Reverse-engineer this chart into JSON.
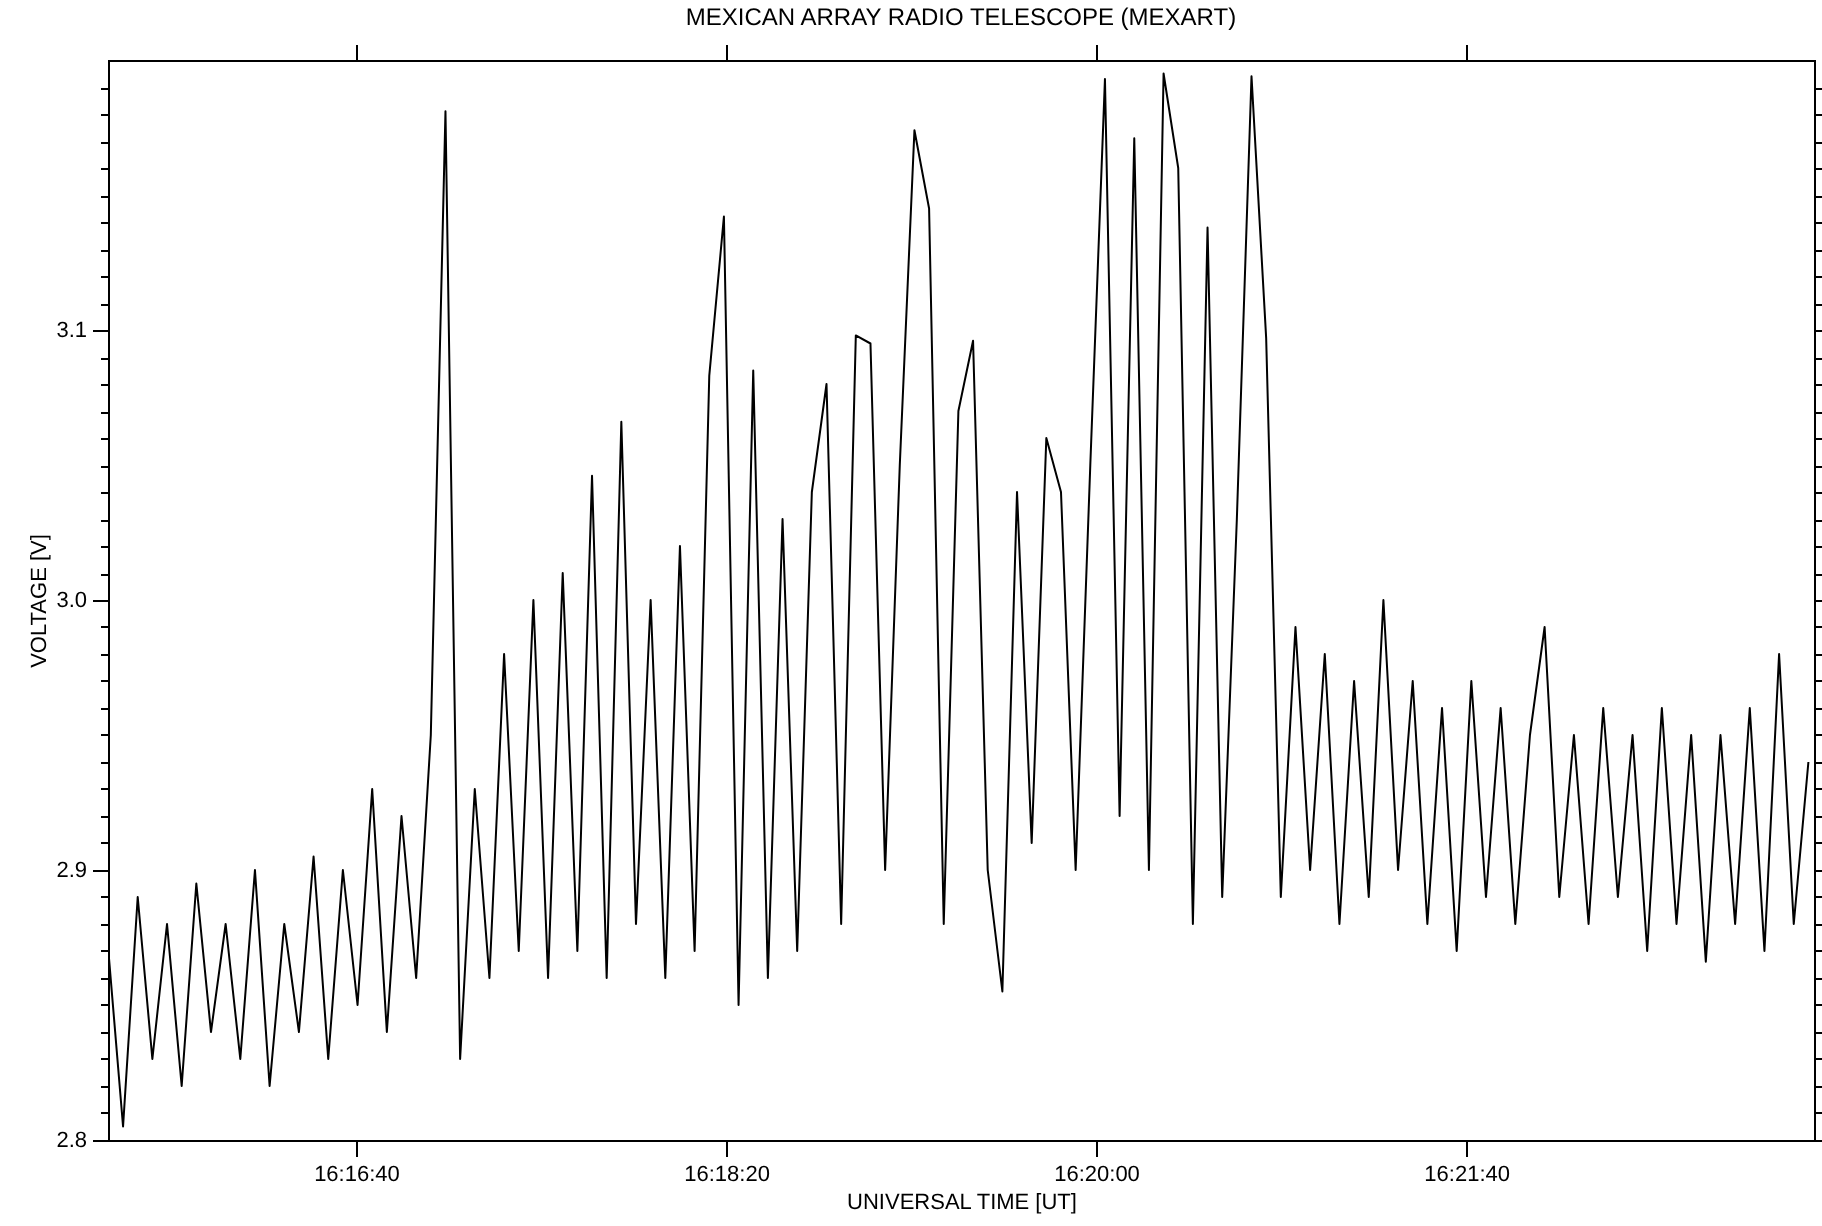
{
  "chart_data": {
    "type": "line",
    "title": "MEXICAN ARRAY RADIO TELESCOPE  (MEXART)",
    "xlabel": "UNIVERSAL TIME [UT]",
    "ylabel": "VOLTAGE [V]",
    "xlim": [
      16.25917,
      16.38722
    ],
    "ylim": [
      2.8,
      3.2
    ],
    "xticks": [
      {
        "value": 16.27778,
        "label": "16:16:40"
      },
      {
        "value": 16.30556,
        "label": "16:18:20"
      },
      {
        "value": 16.33333,
        "label": "16:20:00"
      },
      {
        "value": 16.36111,
        "label": "16:21:40"
      }
    ],
    "yticks": [
      2.8,
      {
        "value": 2.81,
        "label": null
      },
      {
        "value": 2.82,
        "label": null
      },
      {
        "value": 2.83,
        "label": null
      },
      {
        "value": 2.84,
        "label": null
      },
      {
        "value": 2.85,
        "label": null
      },
      {
        "value": 2.86,
        "label": null
      },
      {
        "value": 2.87,
        "label": null
      },
      {
        "value": 2.88,
        "label": null
      },
      {
        "value": 2.89,
        "label": null
      },
      2.9,
      {
        "value": 2.91,
        "label": null
      },
      {
        "value": 2.92,
        "label": null
      },
      {
        "value": 2.93,
        "label": null
      },
      {
        "value": 2.94,
        "label": null
      },
      {
        "value": 2.95,
        "label": null
      },
      {
        "value": 2.96,
        "label": null
      },
      {
        "value": 2.97,
        "label": null
      },
      {
        "value": 2.98,
        "label": null
      },
      {
        "value": 2.99,
        "label": null
      },
      {
        "value": 3.0,
        "label": "3.0"
      },
      {
        "value": 3.01,
        "label": null
      },
      {
        "value": 3.02,
        "label": null
      },
      {
        "value": 3.03,
        "label": null
      },
      {
        "value": 3.04,
        "label": null
      },
      {
        "value": 3.05,
        "label": null
      },
      {
        "value": 3.06,
        "label": null
      },
      {
        "value": 3.07,
        "label": null
      },
      {
        "value": 3.08,
        "label": null
      },
      {
        "value": 3.09,
        "label": null
      },
      3.1,
      {
        "value": 3.11,
        "label": null
      },
      {
        "value": 3.12,
        "label": null
      },
      {
        "value": 3.13,
        "label": null
      },
      {
        "value": 3.14,
        "label": null
      },
      {
        "value": 3.15,
        "label": null
      },
      {
        "value": 3.16,
        "label": null
      },
      {
        "value": 3.17,
        "label": null
      },
      {
        "value": 3.18,
        "label": null
      },
      {
        "value": 3.19,
        "label": null
      }
    ],
    "grid": false,
    "marker": "none",
    "line_style": "solid",
    "x": [
      16.2592,
      16.2603,
      16.2614,
      16.2625,
      16.2636,
      16.2647,
      16.2658,
      16.2669,
      16.268,
      16.2691,
      16.2702,
      16.2713,
      16.2724,
      16.2735,
      16.2746,
      16.2757,
      16.2768,
      16.2779,
      16.279,
      16.2801,
      16.2812,
      16.2823,
      16.2834,
      16.2845,
      16.2856,
      16.2867,
      16.2878,
      16.2889,
      16.29,
      16.2911,
      16.2922,
      16.2933,
      16.2944,
      16.2955,
      16.2966,
      16.2977,
      16.2988,
      16.2999,
      16.301,
      16.3021,
      16.3032,
      16.3043,
      16.3054,
      16.3065,
      16.3076,
      16.3087,
      16.3098,
      16.3109,
      16.312,
      16.3131,
      16.3142,
      16.3153,
      16.3164,
      16.3175,
      16.3186,
      16.3197,
      16.3208,
      16.3219,
      16.323,
      16.3241,
      16.3252,
      16.3263,
      16.3274,
      16.3285,
      16.3296,
      16.3307,
      16.3318,
      16.3329,
      16.334,
      16.3351,
      16.3362,
      16.3373,
      16.3384,
      16.3395,
      16.3406,
      16.3417,
      16.3428,
      16.3439,
      16.345,
      16.3461,
      16.3472,
      16.3483,
      16.3494,
      16.3505,
      16.3516,
      16.3527,
      16.3538,
      16.3549,
      16.356,
      16.3571,
      16.3582,
      16.3593,
      16.3604,
      16.3615,
      16.3626,
      16.3637,
      16.3648,
      16.3659,
      16.367,
      16.3681,
      16.3692,
      16.3703,
      16.3714,
      16.3725,
      16.3736,
      16.3747,
      16.3758,
      16.3769,
      16.378,
      16.3791,
      16.3802,
      16.3813,
      16.3824,
      16.3835,
      16.3846,
      16.3857,
      16.3868
    ],
    "series": [
      {
        "color": "#000000",
        "values": [
          2.87,
          2.805,
          2.89,
          2.83,
          2.88,
          2.82,
          2.895,
          2.84,
          2.88,
          2.83,
          2.9,
          2.82,
          2.88,
          2.84,
          2.905,
          2.83,
          2.9,
          2.85,
          2.93,
          2.84,
          2.92,
          2.86,
          2.95,
          3.181,
          2.83,
          2.93,
          2.86,
          2.98,
          2.87,
          3.0,
          2.86,
          3.01,
          2.87,
          3.046,
          2.86,
          3.066,
          2.88,
          3.0,
          2.86,
          3.02,
          2.87,
          3.083,
          3.142,
          2.85,
          3.085,
          2.86,
          3.03,
          2.87,
          3.04,
          3.08,
          2.88,
          3.098,
          3.095,
          2.9,
          3.05,
          3.174,
          3.145,
          2.88,
          3.07,
          3.096,
          2.9,
          2.855,
          3.04,
          2.91,
          3.06,
          3.04,
          2.9,
          3.05,
          3.193,
          2.92,
          3.171,
          2.9,
          3.195,
          3.16,
          2.88,
          3.138,
          2.89,
          3.03,
          3.194,
          3.097,
          2.89,
          2.99,
          2.9,
          2.98,
          2.88,
          2.97,
          2.89,
          3.0,
          2.9,
          2.97,
          2.88,
          2.96,
          2.87,
          2.97,
          2.89,
          2.96,
          2.88,
          2.95,
          2.99,
          2.89,
          2.95,
          2.88,
          2.96,
          2.89,
          2.95,
          2.87,
          2.96,
          2.88,
          2.95,
          2.866,
          2.95,
          2.88,
          2.96,
          2.87,
          2.98,
          2.88,
          2.94
        ]
      }
    ]
  }
}
